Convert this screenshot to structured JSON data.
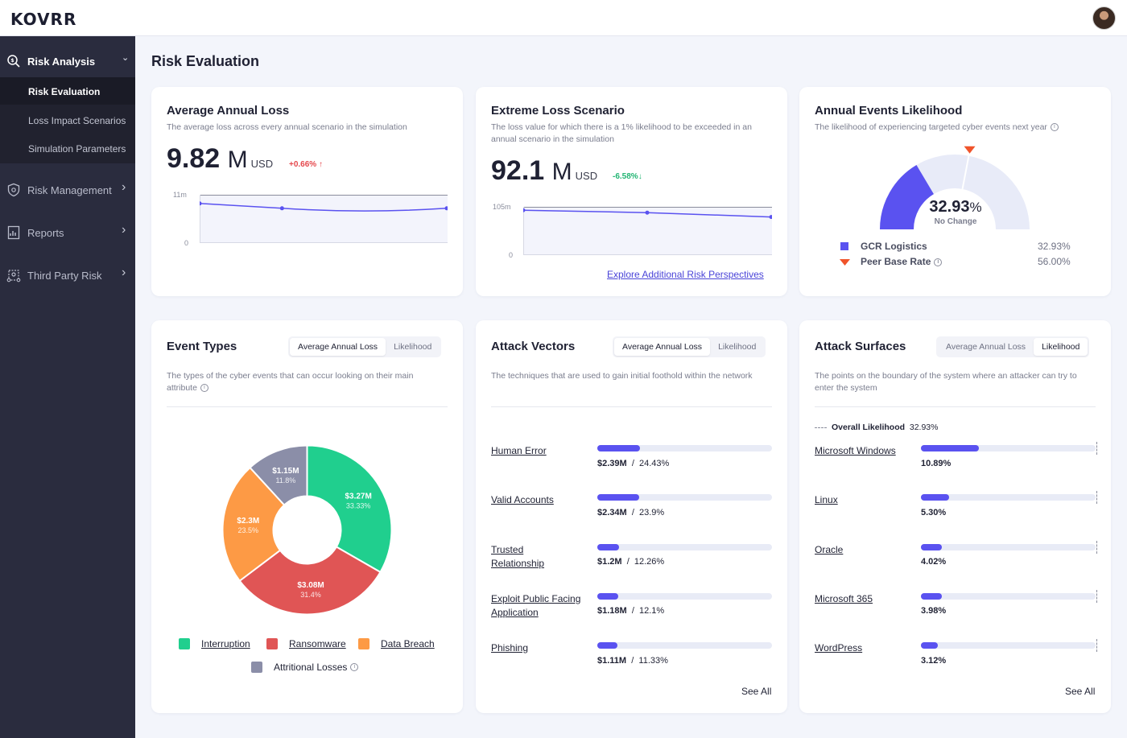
{
  "app": {
    "logo": "KOVRR"
  },
  "sidebar": {
    "risk_analysis": "Risk Analysis",
    "sub_items": [
      "Risk Evaluation",
      "Loss Impact Scenarios",
      "Simulation Parameters"
    ],
    "risk_management": "Risk Management",
    "reports": "Reports",
    "third_party": "Third Party Risk",
    "chevron_down": "⌄",
    "chevron_right": "›"
  },
  "page": {
    "title": "Risk Evaluation"
  },
  "aal": {
    "title": "Average Annual Loss",
    "desc": "The average loss across every annual scenario in the simulation",
    "value": "9.82",
    "suffix": "M",
    "unit": "USD",
    "delta": "+0.66%",
    "delta_arrow": "↑",
    "y_max_label": "11m",
    "y_min_label": "0",
    "series": [
      0.82,
      0.72,
      0.71,
      0.72
    ]
  },
  "els": {
    "title": "Extreme Loss Scenario",
    "desc": "The loss value for which there is a 1% likelihood to be exceeded in an annual scenario in the simulation",
    "value": "92.1",
    "suffix": "M",
    "unit": "USD",
    "delta": "-6.58%",
    "delta_arrow": "↓",
    "y_max_label": "105m",
    "y_min_label": "0",
    "series": [
      0.93,
      0.88,
      0.79
    ],
    "explore_link": "Explore Additional Risk Perspectives"
  },
  "ael": {
    "title": "Annual Events Likelihood",
    "desc": "The likelihood of experiencing targeted cyber events next year",
    "gauge_value": "32.93",
    "gauge_pct": "%",
    "gauge_sub": "No Change",
    "gauge_fraction": 0.3293,
    "peer_fraction": 0.56,
    "legend": [
      {
        "name": "GCR Logistics",
        "value": "32.93%"
      },
      {
        "name": "Peer Base Rate",
        "value": "56.00%"
      }
    ],
    "colors": {
      "company": "#5a52f0",
      "peer": "#f0542b",
      "track": "#e8ebf8"
    }
  },
  "event_types": {
    "title": "Event Types",
    "toggle": [
      "Average Annual Loss",
      "Likelihood"
    ],
    "desc": "The types of the cyber events that can occur looking on  their main attribute",
    "slices": [
      {
        "name": "Interruption",
        "amount": "$3.27M",
        "pct": "33.33%",
        "share": 33.33,
        "color": "#20cf8e"
      },
      {
        "name": "Ransomware",
        "amount": "$3.08M",
        "pct": "31.4%",
        "share": 31.4,
        "color": "#e05555"
      },
      {
        "name": "Data Breach",
        "amount": "$2.3M",
        "pct": "23.5%",
        "share": 23.5,
        "color": "#fd9a45"
      },
      {
        "name": "Attritional Losses",
        "amount": "$1.15M",
        "pct": "11.8%",
        "share": 11.8,
        "color": "#8b8ea8"
      }
    ]
  },
  "attack_vectors": {
    "title": "Attack Vectors",
    "toggle": [
      "Average Annual Loss",
      "Likelihood"
    ],
    "desc": "The techniques that are used to gain initial foothold within the network",
    "rows": [
      {
        "label": "Human Error",
        "amount": "$2.39M",
        "pct": "24.43%",
        "fraction": 0.2443
      },
      {
        "label": "Valid Accounts",
        "amount": "$2.34M",
        "pct": "23.9%",
        "fraction": 0.239
      },
      {
        "label": "Trusted Relationship",
        "amount": "$1.2M",
        "pct": "12.26%",
        "fraction": 0.1226
      },
      {
        "label": "Exploit Public Facing Application",
        "amount": "$1.18M",
        "pct": "12.1%",
        "fraction": 0.121
      },
      {
        "label": "Phishing",
        "amount": "$1.11M",
        "pct": "11.33%",
        "fraction": 0.1133
      }
    ],
    "separator": "/",
    "see_all": "See All"
  },
  "attack_surfaces": {
    "title": "Attack Surfaces",
    "toggle": [
      "Average Annual Loss",
      "Likelihood"
    ],
    "desc": "The points on the boundary of the system where an attacker can try to enter  the system",
    "overall_label": "Overall Likelihood",
    "overall_value": "32.93%",
    "rows": [
      {
        "label": "Microsoft Windows",
        "pct": "10.89%",
        "fraction": 0.33
      },
      {
        "label": "Linux",
        "pct": "5.30%",
        "fraction": 0.161
      },
      {
        "label": "Oracle",
        "pct": "4.02%",
        "fraction": 0.122
      },
      {
        "label": "Microsoft 365",
        "pct": "3.98%",
        "fraction": 0.121
      },
      {
        "label": "WordPress",
        "pct": "3.12%",
        "fraction": 0.095
      }
    ],
    "see_all": "See All"
  },
  "icons": {
    "info": "i"
  }
}
